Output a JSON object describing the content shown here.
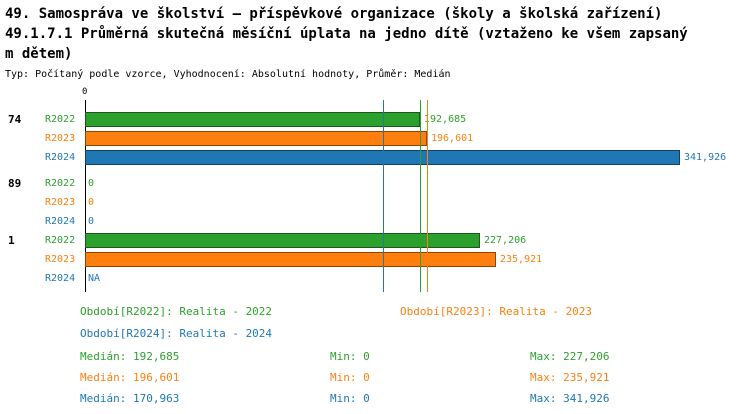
{
  "title": {
    "line1": "49. Samospráva ve školství – příspěvkové organizace (školy a školská zařízení)",
    "line2": "49.1.7.1 Průměrná skutečná měsíční úplata na jedno dítě (vztaženo ke všem zapsaný",
    "line3": "m dětem)",
    "subtitle": "Typ: Počítaný podle vzorce, Vyhodnocení: Absolutní hodnoty, Průměr: Medián"
  },
  "chart_data": {
    "type": "bar",
    "orientation": "horizontal",
    "x_axis": {
      "origin_label": "0",
      "max": 341926
    },
    "series_colors": {
      "R2022": "#2ca02c",
      "R2023": "#ff7f0e",
      "R2024": "#1f77b4"
    },
    "groups": [
      {
        "label": "74",
        "bars": [
          {
            "series": "R2022",
            "value": 192685,
            "display": "192,685",
            "color": "#2ca02c"
          },
          {
            "series": "R2023",
            "value": 196601,
            "display": "196,601",
            "color": "#ff7f0e"
          },
          {
            "series": "R2024",
            "value": 341926,
            "display": "341,926",
            "color": "#1f77b4"
          }
        ]
      },
      {
        "label": "89",
        "bars": [
          {
            "series": "R2022",
            "value": 0,
            "display": "0",
            "color": "#2ca02c"
          },
          {
            "series": "R2023",
            "value": 0,
            "display": "0",
            "color": "#ff7f0e"
          },
          {
            "series": "R2024",
            "value": 0,
            "display": "0",
            "color": "#1f77b4"
          }
        ]
      },
      {
        "label": "1",
        "bars": [
          {
            "series": "R2022",
            "value": 227206,
            "display": "227,206",
            "color": "#2ca02c"
          },
          {
            "series": "R2023",
            "value": 235921,
            "display": "235,921",
            "color": "#ff7f0e"
          },
          {
            "series": "R2024",
            "value": null,
            "display": "NA",
            "color": "#1f77b4"
          }
        ]
      }
    ],
    "median_lines": [
      {
        "series": "R2022",
        "value": 192685,
        "color": "#2ca02c"
      },
      {
        "series": "R2023",
        "value": 196601,
        "color": "#ff7f0e"
      },
      {
        "series": "R2024",
        "value": 170963,
        "color": "#1f77b4"
      }
    ],
    "legend": [
      {
        "label": "Období[R2022]: Realita - 2022",
        "color": "#2ca02c"
      },
      {
        "label": "Období[R2023]: Realita - 2023",
        "color": "#ff7f0e"
      },
      {
        "label": "Období[R2024]: Realita - 2024",
        "color": "#1f77b4"
      }
    ],
    "stats": [
      {
        "median": "Medián: 192,685",
        "min": "Min: 0",
        "max": "Max: 227,206",
        "color": "#2ca02c"
      },
      {
        "median": "Medián: 196,601",
        "min": "Min: 0",
        "max": "Max: 235,921",
        "color": "#ff7f0e"
      },
      {
        "median": "Medián: 170,963",
        "min": "Min: 0",
        "max": "Max: 341,926",
        "color": "#1f77b4"
      }
    ]
  }
}
